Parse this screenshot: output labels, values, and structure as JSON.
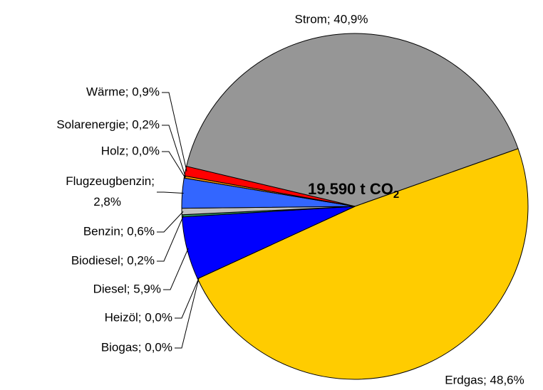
{
  "chart_data": {
    "type": "pie",
    "center_label": {
      "text": "19.590 t CO",
      "subscript": "2"
    },
    "values": [
      40.9,
      48.6,
      0.0,
      0.0,
      5.9,
      0.2,
      0.6,
      2.8,
      0.0,
      0.2,
      0.9
    ],
    "value_labels": [
      "Strom; 40,9%",
      "Erdgas; 48,6%",
      "Biogas; 0,0%",
      "Heizöl; 0,0%",
      "Diesel; 5,9%",
      "Biodiesel; 0,2%",
      "Benzin; 0,6%",
      "Flugzeugbenzin;\n2,8%",
      "Holz; 0,0%",
      "Solarenergie; 0,2%",
      "Wärme; 0,9%"
    ],
    "colors": [
      "#969696",
      "#ffcc00",
      "#99cc00",
      "#993300",
      "#0000ff",
      "#339966",
      "#c0c0c0",
      "#3366ff",
      "#996633",
      "#ff9900",
      "#ff0000"
    ]
  }
}
